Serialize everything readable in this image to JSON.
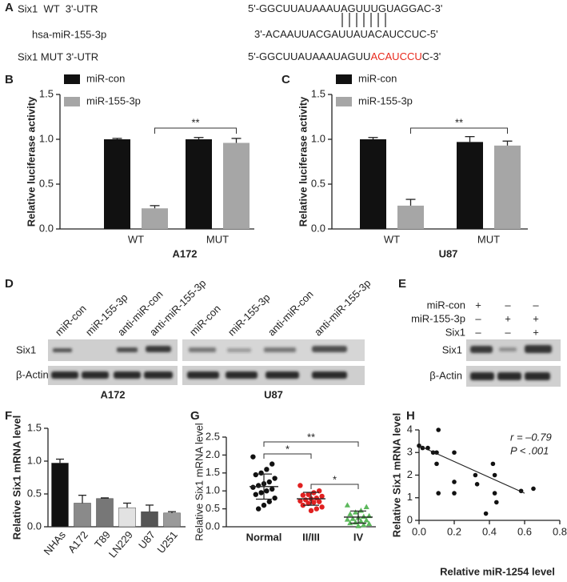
{
  "panel_a": {
    "panel": "A",
    "rows": [
      {
        "label": "Six1  WT  3'-UTR",
        "sequence": [
          {
            "text": "5'-GGCUUAUAAAUAGUUUGUAGGAC-3'",
            "color": "#222222"
          }
        ]
      },
      {
        "label": "hsa-miR-155-3p",
        "sequence": [
          {
            "text": "3'-ACAAUUACGAUUAUACAUCCUC-5'",
            "color": "#222222"
          }
        ]
      },
      {
        "label": "Six1 MUT 3'-UTR",
        "sequence": [
          {
            "text": "5'-GGCUUAUAAAUAGUU",
            "color": "#222222"
          },
          {
            "text": "ACAUCCU",
            "color": "#e8291c"
          },
          {
            "text": "C-3'",
            "color": "#222222"
          }
        ]
      }
    ]
  },
  "panel_d": {
    "panel": "D",
    "rows": [
      "Six1",
      "β-Actin"
    ],
    "groups": [
      {
        "name": "A172",
        "lanes": [
          "miR-con",
          "miR-155-3p",
          "anti-miR-con",
          "anti-miR-155-3p"
        ]
      },
      {
        "name": "U87",
        "lanes": [
          "miR-con",
          "miR-155-3p",
          "anti-miR-con",
          "anti-miR-155-3p"
        ]
      }
    ]
  },
  "panel_e": {
    "panel": "E",
    "conditions": [
      {
        "name": "miR-con",
        "signs": [
          "+",
          "–",
          "–"
        ]
      },
      {
        "name": "miR-155-3p",
        "signs": [
          "–",
          "+",
          "+"
        ]
      },
      {
        "name": "Six1",
        "signs": [
          "–",
          "–",
          "+"
        ]
      }
    ],
    "rows": [
      "Six1",
      "β-Actin"
    ]
  },
  "chart_data": [
    {
      "type": "bar",
      "panel": "B",
      "ylabel": "Relative luciferase activity",
      "xlabel": "A172",
      "categories": [
        "WT",
        "MUT"
      ],
      "series": [
        {
          "name": "miR-con",
          "color": "#111111",
          "values": [
            1.0,
            1.0
          ],
          "errors": [
            0.01,
            0.02
          ]
        },
        {
          "name": "miR-155-3p",
          "color": "#a6a6a6",
          "values": [
            0.23,
            0.96
          ],
          "errors": [
            0.03,
            0.05
          ]
        }
      ],
      "ylim": [
        0,
        1.5
      ],
      "yticks": [
        {
          "value": 0,
          "label": "0.0"
        },
        0.5,
        {
          "value": 1,
          "label": "1.0"
        },
        1.5
      ],
      "annotation": "**"
    },
    {
      "type": "bar",
      "panel": "C",
      "ylabel": "Relative luciferase activity",
      "xlabel": "U87",
      "categories": [
        "WT",
        "MUT"
      ],
      "series": [
        {
          "name": "miR-con",
          "color": "#111111",
          "values": [
            1.0,
            0.97
          ],
          "errors": [
            0.02,
            0.06
          ]
        },
        {
          "name": "miR-155-3p",
          "color": "#a6a6a6",
          "values": [
            0.26,
            0.93
          ],
          "errors": [
            0.07,
            0.05
          ]
        }
      ],
      "ylim": [
        0,
        1.5
      ],
      "yticks": [
        {
          "value": 0,
          "label": "0.0"
        },
        0.5,
        {
          "value": 1,
          "label": "1.0"
        },
        1.5
      ],
      "annotation": "**"
    },
    {
      "type": "bar",
      "panel": "F",
      "ylabel": "Relative Six1 mRNA level",
      "categories": [
        "NHAs",
        "A172",
        "T89",
        "LN229",
        "U87",
        "U251"
      ],
      "values": [
        0.97,
        0.36,
        0.43,
        0.29,
        0.23,
        0.21
      ],
      "errors": [
        0.06,
        0.12,
        0.01,
        0.07,
        0.1,
        0.02
      ],
      "colors": [
        "#111111",
        "#8a8a8a",
        "#777777",
        "#e2e2e2",
        "#555555",
        "#9a9a9a"
      ],
      "ylim": [
        0,
        1.5
      ],
      "yticks": [
        {
          "value": 0,
          "label": "0.0"
        },
        0.5,
        {
          "value": 1,
          "label": "1.0"
        },
        1.5
      ]
    },
    {
      "type": "dot",
      "panel": "G",
      "ylabel": "Relative Six1 mRNA level",
      "categories": [
        "Normal",
        "II/III",
        "IV"
      ],
      "groups": [
        {
          "color": "#111111",
          "marker": "circle",
          "mean": 1.12,
          "sd": 0.35,
          "values": [
            1.95,
            1.75,
            1.6,
            1.5,
            1.45,
            1.35,
            1.25,
            1.2,
            1.15,
            1.1,
            1.05,
            1.0,
            0.95,
            0.9,
            0.8,
            0.7,
            0.6,
            0.5
          ]
        },
        {
          "color": "#e02020",
          "marker": "circle",
          "mean": 0.78,
          "sd": 0.18,
          "values": [
            1.15,
            1.0,
            0.95,
            0.9,
            0.88,
            0.85,
            0.8,
            0.78,
            0.75,
            0.72,
            0.7,
            0.68,
            0.65,
            0.6,
            0.55,
            0.5,
            0.45
          ]
        },
        {
          "color": "#5cb85c",
          "marker": "triangle",
          "mean": 0.27,
          "sd": 0.17,
          "values": [
            0.6,
            0.55,
            0.45,
            0.4,
            0.35,
            0.3,
            0.28,
            0.25,
            0.22,
            0.2,
            0.18,
            0.15,
            0.12,
            0.1,
            0.08,
            0.05,
            0.02
          ]
        }
      ],
      "annotations": [
        "*",
        "**",
        "*"
      ],
      "ylim": [
        0,
        2.5
      ],
      "yticks": [
        {
          "value": 0,
          "label": "0.0"
        },
        0.5,
        {
          "value": 1,
          "label": "1.0"
        },
        1.5,
        {
          "value": 2,
          "label": "2.0"
        },
        2.5
      ]
    },
    {
      "type": "scatter",
      "panel": "H",
      "ylabel": "Relative Six1 mRNA level",
      "xlabel": "Relative miR-1254 level",
      "annotations": [
        "r = –0.79",
        "P < .001"
      ],
      "x": [
        0.0,
        0.02,
        0.05,
        0.08,
        0.1,
        0.11,
        0.11,
        0.2,
        0.2,
        0.2,
        0.32,
        0.33,
        0.38,
        0.42,
        0.43,
        0.43,
        0.44,
        0.58,
        0.65,
        0.1
      ],
      "values": [
        3.3,
        3.2,
        3.2,
        3.0,
        2.5,
        4.0,
        1.2,
        3.0,
        1.7,
        1.2,
        2.0,
        1.6,
        0.3,
        2.5,
        2.0,
        1.2,
        0.8,
        1.3,
        1.4,
        3.0
      ],
      "color": "#111111",
      "fit": {
        "x": [
          0,
          0.6
        ],
        "y": [
          3.3,
          1.2
        ]
      },
      "xlim": [
        0,
        0.8
      ],
      "xticks": [
        {
          "value": 0,
          "label": "0.0"
        },
        0.2,
        0.4,
        0.6,
        0.8
      ],
      "ylim": [
        0,
        4
      ],
      "yticks": [
        0,
        1,
        2,
        3,
        4
      ]
    }
  ]
}
